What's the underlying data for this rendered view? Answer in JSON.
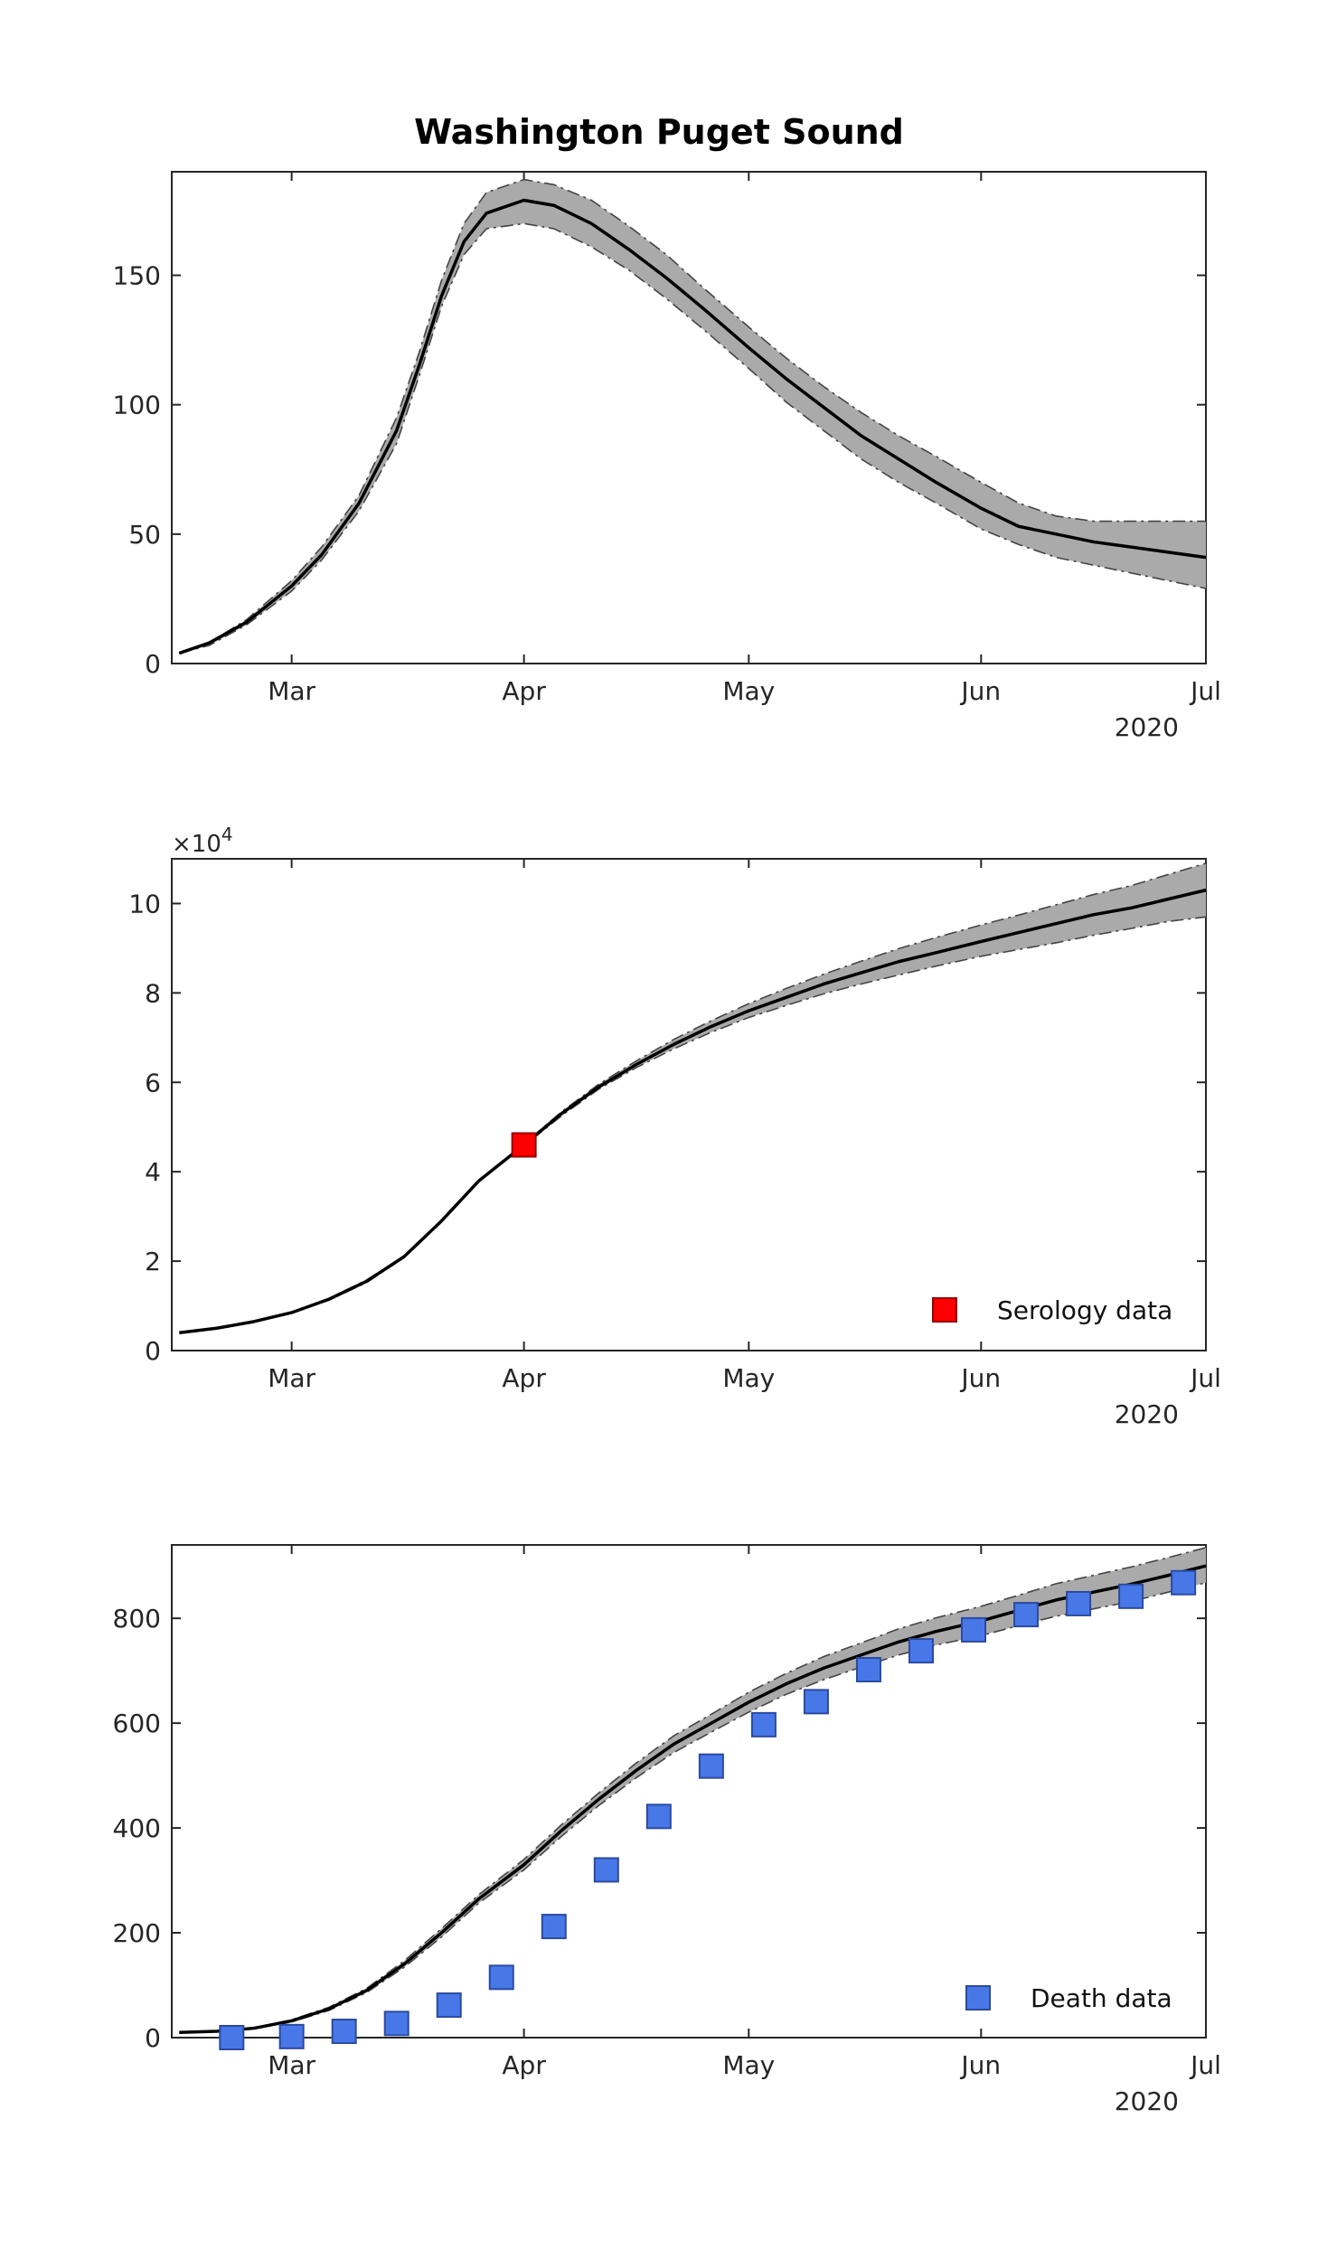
{
  "chart_data": [
    {
      "type": "line",
      "title": "Washington Puget Sound",
      "xlabel": "",
      "ylabel": "",
      "x_tick_labels": [
        "Mar",
        "Apr",
        "May",
        "Jun",
        "Jul"
      ],
      "x_year_label": "2020",
      "y_tick_labels": [
        "0",
        "50",
        "100",
        "150"
      ],
      "ylim": [
        0,
        190
      ],
      "xlim": [
        "2020-02-14",
        "2020-07-01"
      ],
      "grid": false,
      "series": [
        {
          "x": [
            "2020-02-15",
            "2020-02-19",
            "2020-02-24",
            "2020-03-01",
            "2020-03-05",
            "2020-03-10",
            "2020-03-15",
            "2020-03-18",
            "2020-03-21",
            "2020-03-24",
            "2020-03-27",
            "2020-04-01",
            "2020-04-05",
            "2020-04-10",
            "2020-04-15",
            "2020-04-20",
            "2020-04-25",
            "2020-05-01",
            "2020-05-06",
            "2020-05-11",
            "2020-05-16",
            "2020-05-21",
            "2020-05-26",
            "2020-06-01",
            "2020-06-06",
            "2020-06-11",
            "2020-06-16",
            "2020-06-21",
            "2020-06-26",
            "2020-07-01"
          ],
          "values": [
            4,
            8,
            16,
            30,
            42,
            62,
            90,
            115,
            142,
            163,
            174,
            179,
            177,
            170,
            160,
            149,
            137,
            122,
            110,
            99,
            88,
            79,
            70,
            60,
            53,
            50,
            47,
            45,
            43,
            41
          ],
          "lower": [
            4,
            7,
            15,
            28,
            40,
            59,
            85,
            111,
            138,
            158,
            168,
            170,
            168,
            161,
            152,
            141,
            129,
            114,
            101,
            90,
            79,
            70,
            62,
            52,
            46,
            41,
            38,
            35,
            32,
            29
          ],
          "upper": [
            4,
            8,
            17,
            32,
            45,
            65,
            95,
            120,
            148,
            170,
            182,
            187,
            185,
            179,
            169,
            158,
            145,
            130,
            118,
            107,
            97,
            88,
            80,
            70,
            62,
            57,
            55,
            55,
            55,
            55
          ]
        }
      ]
    },
    {
      "type": "line",
      "title": "",
      "xlabel": "",
      "ylabel": "",
      "y_scale_label": "×10",
      "y_scale_exponent": "4",
      "x_tick_labels": [
        "Mar",
        "Apr",
        "May",
        "Jun",
        "Jul"
      ],
      "x_year_label": "2020",
      "y_tick_labels": [
        "0",
        "2",
        "4",
        "6",
        "8",
        "10"
      ],
      "ylim": [
        0,
        110000
      ],
      "xlim": [
        "2020-02-14",
        "2020-07-01"
      ],
      "legend_position": "bottom-right",
      "grid": false,
      "series": [
        {
          "x": [
            "2020-02-15",
            "2020-02-20",
            "2020-02-25",
            "2020-03-01",
            "2020-03-06",
            "2020-03-11",
            "2020-03-16",
            "2020-03-21",
            "2020-03-26",
            "2020-04-01",
            "2020-04-06",
            "2020-04-11",
            "2020-04-16",
            "2020-04-21",
            "2020-04-26",
            "2020-05-01",
            "2020-05-06",
            "2020-05-11",
            "2020-05-16",
            "2020-05-21",
            "2020-05-26",
            "2020-06-01",
            "2020-06-06",
            "2020-06-11",
            "2020-06-16",
            "2020-06-21",
            "2020-06-26",
            "2020-07-01"
          ],
          "values": [
            4000,
            5000,
            6500,
            8500,
            11500,
            15500,
            21000,
            29000,
            38000,
            46000,
            53000,
            59000,
            64000,
            68500,
            72500,
            76000,
            79000,
            82000,
            84500,
            87000,
            89000,
            91500,
            93500,
            95500,
            97500,
            99000,
            101000,
            103000
          ],
          "lower": [
            4000,
            5000,
            6500,
            8400,
            11300,
            15200,
            20800,
            28800,
            37800,
            45800,
            52500,
            58500,
            63300,
            67500,
            71200,
            74500,
            77200,
            79800,
            82000,
            84000,
            86000,
            88200,
            89700,
            91200,
            92900,
            94400,
            96000,
            97000
          ],
          "upper": [
            4000,
            5000,
            6500,
            8600,
            11700,
            15800,
            21200,
            29200,
            38200,
            46200,
            53400,
            59600,
            64800,
            69600,
            73800,
            77600,
            81000,
            84200,
            87100,
            89900,
            92400,
            95200,
            97400,
            99700,
            102000,
            104000,
            106500,
            109000
          ]
        }
      ],
      "points": [
        {
          "name": "Serology data",
          "x": [
            "2020-04-01"
          ],
          "y": [
            46000
          ],
          "color": "#ff0000"
        }
      ]
    },
    {
      "type": "line",
      "title": "",
      "xlabel": "",
      "ylabel": "",
      "x_tick_labels": [
        "Mar",
        "Apr",
        "May",
        "Jun",
        "Jul"
      ],
      "x_year_label": "2020",
      "y_tick_labels": [
        "0",
        "200",
        "400",
        "600",
        "800"
      ],
      "ylim": [
        0,
        940
      ],
      "xlim": [
        "2020-02-14",
        "2020-07-01"
      ],
      "legend_position": "bottom-right",
      "grid": false,
      "series": [
        {
          "x": [
            "2020-02-15",
            "2020-02-20",
            "2020-02-25",
            "2020-03-01",
            "2020-03-06",
            "2020-03-11",
            "2020-03-16",
            "2020-03-21",
            "2020-03-26",
            "2020-04-01",
            "2020-04-06",
            "2020-04-11",
            "2020-04-16",
            "2020-04-21",
            "2020-04-26",
            "2020-05-01",
            "2020-05-06",
            "2020-05-11",
            "2020-05-16",
            "2020-05-21",
            "2020-05-26",
            "2020-06-01",
            "2020-06-06",
            "2020-06-11",
            "2020-06-16",
            "2020-06-21",
            "2020-06-26",
            "2020-07-01"
          ],
          "values": [
            10,
            12,
            18,
            32,
            55,
            90,
            140,
            200,
            265,
            330,
            395,
            455,
            510,
            560,
            600,
            640,
            675,
            705,
            730,
            755,
            775,
            795,
            815,
            835,
            850,
            865,
            882,
            900
          ],
          "lower": [
            10,
            12,
            17,
            30,
            52,
            86,
            134,
            192,
            257,
            320,
            384,
            443,
            496,
            544,
            583,
            621,
            655,
            683,
            707,
            730,
            749,
            767,
            786,
            804,
            818,
            832,
            850,
            868
          ],
          "upper": [
            10,
            12,
            19,
            34,
            58,
            94,
            146,
            208,
            273,
            340,
            406,
            467,
            524,
            576,
            617,
            659,
            695,
            727,
            753,
            780,
            801,
            823,
            844,
            866,
            882,
            898,
            916,
            935
          ]
        }
      ],
      "points": [
        {
          "name": "Death data",
          "color": "#4878e8",
          "x": [
            "2020-02-22",
            "2020-03-01",
            "2020-03-08",
            "2020-03-15",
            "2020-03-22",
            "2020-03-29",
            "2020-04-05",
            "2020-04-12",
            "2020-04-19",
            "2020-04-26",
            "2020-05-03",
            "2020-05-10",
            "2020-05-17",
            "2020-05-24",
            "2020-05-31",
            "2020-06-07",
            "2020-06-14",
            "2020-06-21",
            "2020-06-28"
          ],
          "y": [
            0,
            2,
            12,
            27,
            62,
            115,
            212,
            320,
            422,
            518,
            597,
            641,
            702,
            738,
            778,
            807,
            828,
            842,
            868
          ]
        }
      ]
    }
  ]
}
